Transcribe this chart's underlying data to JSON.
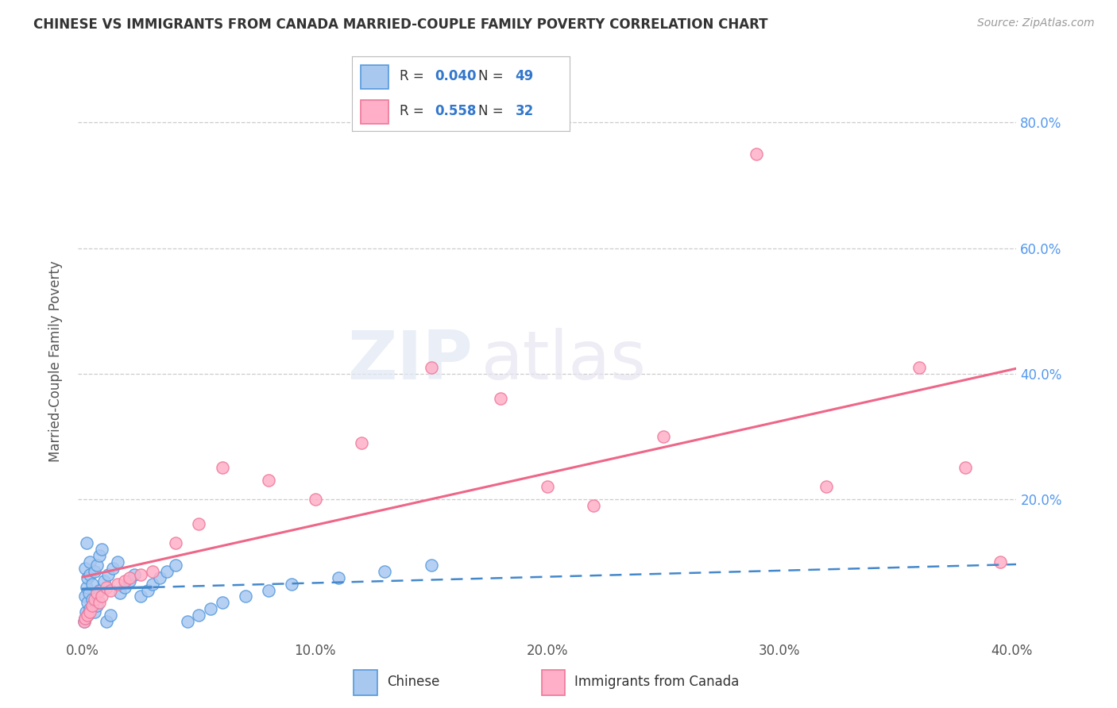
{
  "title": "CHINESE VS IMMIGRANTS FROM CANADA MARRIED-COUPLE FAMILY POVERTY CORRELATION CHART",
  "source": "Source: ZipAtlas.com",
  "ylabel": "Married-Couple Family Poverty",
  "legend_label1": "Chinese",
  "legend_label2": "Immigrants from Canada",
  "R1": 0.04,
  "N1": 49,
  "R2": 0.558,
  "N2": 32,
  "xlim": [
    -0.002,
    0.402
  ],
  "ylim": [
    -0.02,
    0.86
  ],
  "xticks": [
    0.0,
    0.1,
    0.2,
    0.3,
    0.4
  ],
  "yticks": [
    0.2,
    0.4,
    0.6,
    0.8
  ],
  "ytick_labels": [
    "20.0%",
    "40.0%",
    "60.0%",
    "80.0%"
  ],
  "xtick_labels": [
    "0.0%",
    "10.0%",
    "20.0%",
    "30.0%",
    "40.0%"
  ],
  "color1": "#a8c8f0",
  "color1_edge": "#5599dd",
  "color1_line": "#4488cc",
  "color2": "#ffb0c8",
  "color2_edge": "#ee7799",
  "color2_line": "#ee6688",
  "background_color": "#ffffff",
  "watermark_zip": "ZIP",
  "watermark_atlas": "atlas",
  "chinese_x": [
    0.0005,
    0.0008,
    0.001,
    0.001,
    0.0012,
    0.0015,
    0.0015,
    0.002,
    0.002,
    0.002,
    0.0025,
    0.003,
    0.003,
    0.003,
    0.004,
    0.004,
    0.005,
    0.005,
    0.006,
    0.006,
    0.007,
    0.007,
    0.008,
    0.009,
    0.01,
    0.011,
    0.012,
    0.013,
    0.015,
    0.016,
    0.018,
    0.02,
    0.022,
    0.025,
    0.028,
    0.03,
    0.033,
    0.036,
    0.04,
    0.045,
    0.05,
    0.055,
    0.06,
    0.07,
    0.08,
    0.09,
    0.11,
    0.13,
    0.15
  ],
  "chinese_y": [
    0.005,
    0.01,
    0.045,
    0.09,
    0.02,
    0.06,
    0.13,
    0.035,
    0.075,
    0.015,
    0.05,
    0.08,
    0.025,
    0.1,
    0.04,
    0.065,
    0.085,
    0.02,
    0.095,
    0.03,
    0.11,
    0.055,
    0.12,
    0.07,
    0.005,
    0.08,
    0.015,
    0.09,
    0.1,
    0.05,
    0.06,
    0.07,
    0.08,
    0.045,
    0.055,
    0.065,
    0.075,
    0.085,
    0.095,
    0.005,
    0.015,
    0.025,
    0.035,
    0.045,
    0.055,
    0.065,
    0.075,
    0.085,
    0.095
  ],
  "canada_x": [
    0.0005,
    0.001,
    0.002,
    0.003,
    0.004,
    0.005,
    0.006,
    0.007,
    0.008,
    0.01,
    0.012,
    0.015,
    0.018,
    0.02,
    0.025,
    0.03,
    0.04,
    0.05,
    0.06,
    0.08,
    0.1,
    0.12,
    0.15,
    0.18,
    0.2,
    0.22,
    0.25,
    0.29,
    0.32,
    0.36,
    0.38,
    0.395
  ],
  "canada_y": [
    0.005,
    0.01,
    0.015,
    0.02,
    0.03,
    0.04,
    0.05,
    0.035,
    0.045,
    0.06,
    0.055,
    0.065,
    0.07,
    0.075,
    0.08,
    0.085,
    0.13,
    0.16,
    0.25,
    0.23,
    0.2,
    0.29,
    0.41,
    0.36,
    0.22,
    0.19,
    0.3,
    0.75,
    0.22,
    0.41,
    0.25,
    0.1
  ]
}
